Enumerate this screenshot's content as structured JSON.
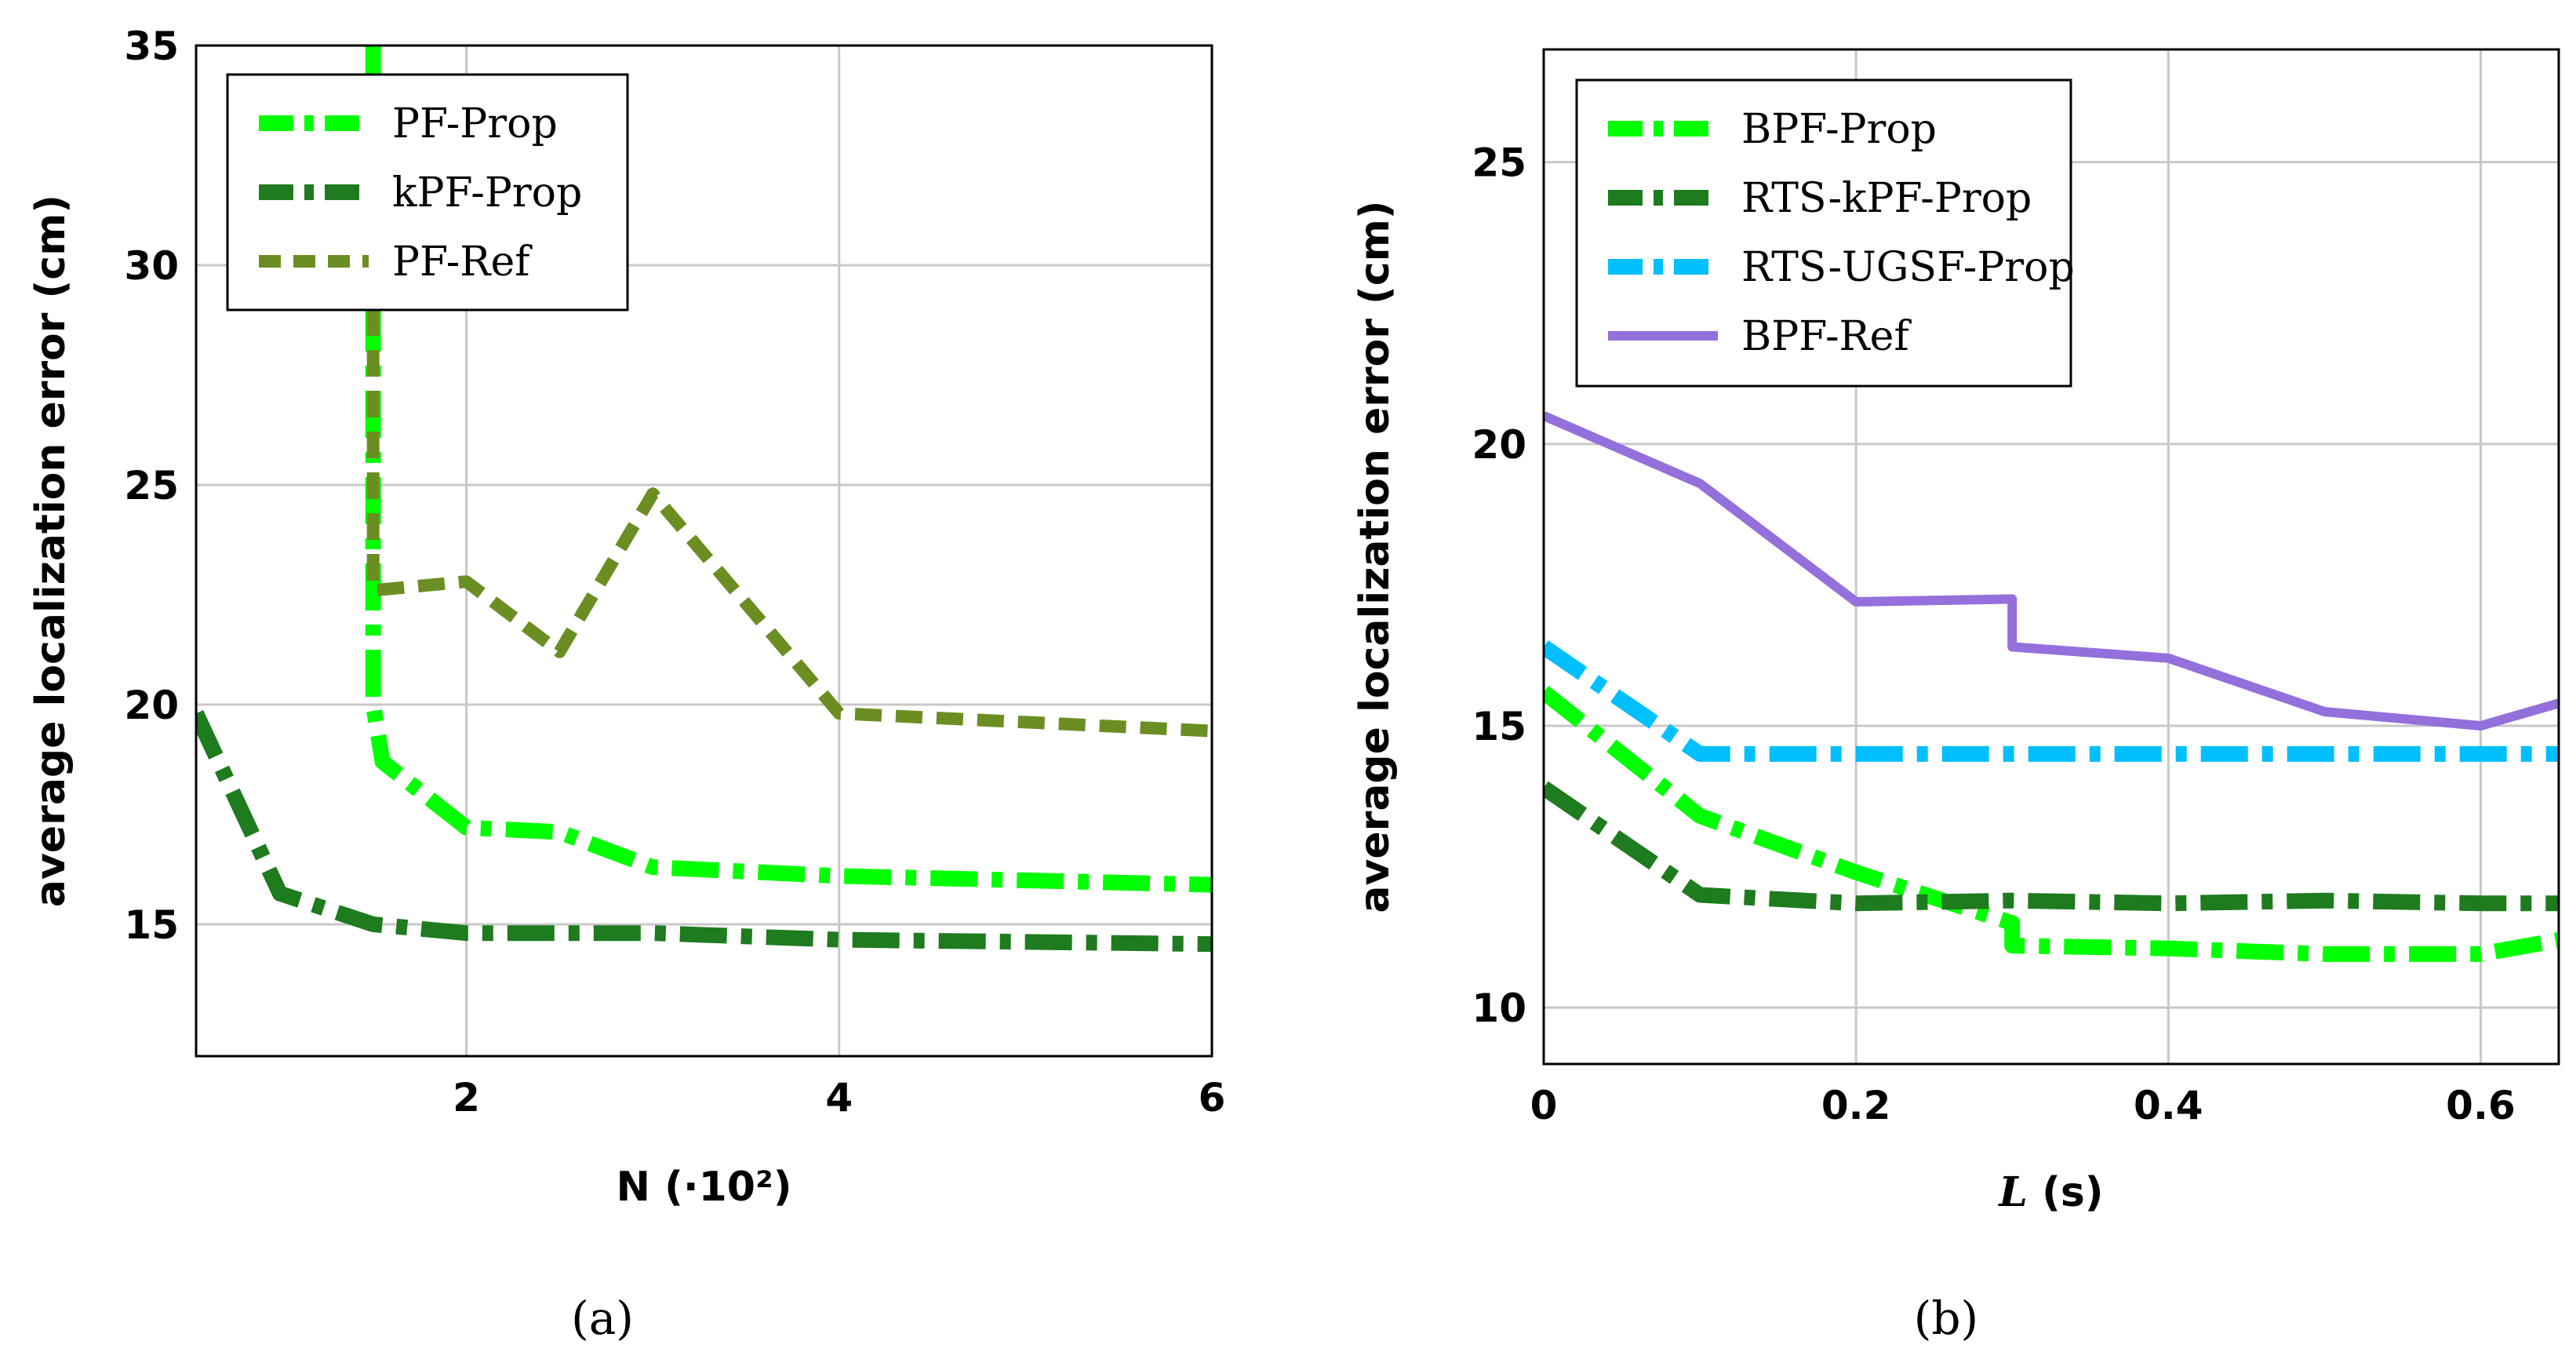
{
  "chart_data": [
    {
      "type": "line",
      "caption": "(a)",
      "xlabel": "N (·10²)",
      "ylabel": "average localization error (cm)",
      "xlim": [
        0.55,
        6
      ],
      "ylim": [
        12,
        35
      ],
      "xticks": [
        "2",
        "4",
        "6"
      ],
      "xtick_values": [
        2,
        4,
        6
      ],
      "yticks": [
        "15",
        "20",
        "25",
        "30",
        "35"
      ],
      "ytick_values": [
        15,
        20,
        25,
        30,
        35
      ],
      "grid": true,
      "legend_position": "top-left",
      "series": [
        {
          "name": "PF-Prop",
          "color": "#00ff00",
          "style": "dashdot",
          "x": [
            1.5,
            1.5,
            1.5,
            1.5,
            1.55,
            2.0,
            2.5,
            3.0,
            3.5,
            4.0,
            5.0,
            6.0
          ],
          "y": [
            35,
            30,
            25,
            20,
            18.7,
            17.2,
            17.1,
            16.3,
            16.2,
            16.1,
            16.0,
            15.9
          ]
        },
        {
          "name": "kPF-Prop",
          "color": "#1e7b1e",
          "style": "dashdot",
          "x": [
            0.55,
            1.0,
            1.5,
            2.0,
            2.5,
            3.0,
            4.0,
            5.0,
            6.0
          ],
          "y": [
            19.8,
            15.7,
            15.0,
            14.8,
            14.8,
            14.8,
            14.65,
            14.6,
            14.55
          ]
        },
        {
          "name": "PF-Ref",
          "color": "#6b8e23",
          "style": "dashed",
          "x": [
            1.5,
            1.5,
            1.5,
            2.0,
            2.5,
            3.0,
            4.0,
            5.0,
            6.0
          ],
          "y": [
            29.0,
            25.0,
            22.6,
            22.8,
            21.2,
            24.8,
            19.8,
            19.6,
            19.4
          ]
        }
      ]
    },
    {
      "type": "line",
      "caption": "(b)",
      "xlabel": "L (s)",
      "xlabel_italic": "L",
      "xlabel_rest": " (s)",
      "ylabel": "average localization error (cm)",
      "xlim": [
        0,
        0.65
      ],
      "ylim": [
        9,
        27
      ],
      "xticks": [
        "0",
        "0.2",
        "0.4",
        "0.6"
      ],
      "xtick_values": [
        0,
        0.2,
        0.4,
        0.6
      ],
      "yticks": [
        "10",
        "15",
        "20",
        "25"
      ],
      "ytick_values": [
        10,
        15,
        20,
        25
      ],
      "grid": true,
      "legend_position": "top-left",
      "series": [
        {
          "name": "BPF-Prop",
          "color": "#00ff00",
          "style": "dashdot",
          "x": [
            0,
            0.1,
            0.2,
            0.3,
            0.3,
            0.4,
            0.5,
            0.6,
            0.65
          ],
          "y": [
            15.6,
            13.4,
            12.4,
            11.5,
            11.1,
            11.05,
            10.95,
            10.95,
            11.2
          ]
        },
        {
          "name": "RTS-kPF-Prop",
          "color": "#1e7b1e",
          "style": "dashdot",
          "x": [
            0,
            0.1,
            0.2,
            0.3,
            0.4,
            0.5,
            0.6,
            0.65
          ],
          "y": [
            13.9,
            12.0,
            11.85,
            11.9,
            11.85,
            11.9,
            11.85,
            11.85
          ]
        },
        {
          "name": "RTS-UGSF-Prop",
          "color": "#00bfff",
          "style": "dashdot",
          "x": [
            0,
            0.1,
            0.2,
            0.3,
            0.4,
            0.5,
            0.6,
            0.65
          ],
          "y": [
            16.4,
            14.5,
            14.5,
            14.5,
            14.5,
            14.5,
            14.5,
            14.5
          ]
        },
        {
          "name": "BPF-Ref",
          "color": "#9370db",
          "style": "solid",
          "x": [
            0,
            0.1,
            0.2,
            0.3,
            0.3,
            0.4,
            0.5,
            0.6,
            0.65
          ],
          "y": [
            20.5,
            19.3,
            17.2,
            17.25,
            16.4,
            16.2,
            15.25,
            15.0,
            15.4
          ]
        }
      ]
    }
  ]
}
